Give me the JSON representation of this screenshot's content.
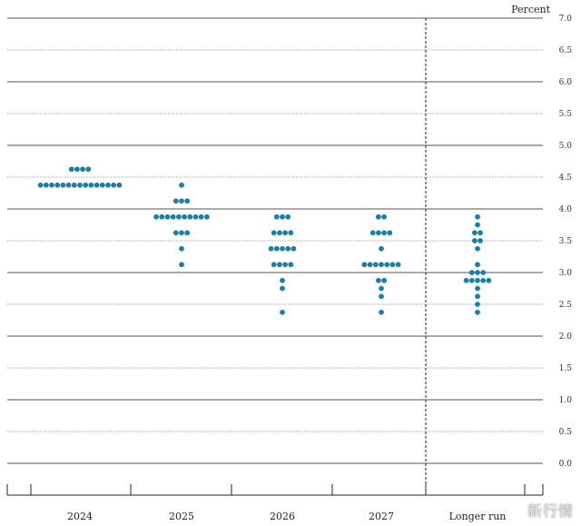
{
  "chart_data": {
    "type": "scatter",
    "ylabel": "Percent",
    "ylim": [
      0,
      7
    ],
    "ytick_step": 0.5,
    "categories": [
      "2024",
      "2025",
      "2026",
      "2027",
      "Longer run"
    ],
    "grid": "horizontal",
    "separator_before_category": 4,
    "dot_color": "#1a7fa8",
    "dots": [
      {
        "category": "2024",
        "values": [
          {
            "y": 4.625,
            "count": 4
          },
          {
            "y": 4.375,
            "count": 15
          }
        ]
      },
      {
        "category": "2025",
        "values": [
          {
            "y": 4.375,
            "count": 1
          },
          {
            "y": 4.125,
            "count": 3
          },
          {
            "y": 3.875,
            "count": 10
          },
          {
            "y": 3.625,
            "count": 3
          },
          {
            "y": 3.375,
            "count": 1
          },
          {
            "y": 3.125,
            "count": 1
          }
        ]
      },
      {
        "category": "2026",
        "values": [
          {
            "y": 3.875,
            "count": 3
          },
          {
            "y": 3.625,
            "count": 4
          },
          {
            "y": 3.375,
            "count": 5
          },
          {
            "y": 3.125,
            "count": 4
          },
          {
            "y": 2.875,
            "count": 1
          },
          {
            "y": 2.75,
            "count": 1
          },
          {
            "y": 2.375,
            "count": 1
          }
        ]
      },
      {
        "category": "2027",
        "values": [
          {
            "y": 3.875,
            "count": 2
          },
          {
            "y": 3.625,
            "count": 4
          },
          {
            "y": 3.375,
            "count": 1
          },
          {
            "y": 3.125,
            "count": 7
          },
          {
            "y": 2.875,
            "count": 2
          },
          {
            "y": 2.75,
            "count": 1
          },
          {
            "y": 2.625,
            "count": 1
          },
          {
            "y": 2.375,
            "count": 1
          }
        ]
      },
      {
        "category": "Longer run",
        "values": [
          {
            "y": 3.875,
            "count": 1
          },
          {
            "y": 3.75,
            "count": 1
          },
          {
            "y": 3.625,
            "count": 2
          },
          {
            "y": 3.5,
            "count": 2
          },
          {
            "y": 3.375,
            "count": 1
          },
          {
            "y": 3.125,
            "count": 1
          },
          {
            "y": 3.0,
            "count": 3
          },
          {
            "y": 2.875,
            "count": 5
          },
          {
            "y": 2.75,
            "count": 1
          },
          {
            "y": 2.625,
            "count": 1
          },
          {
            "y": 2.5,
            "count": 1
          },
          {
            "y": 2.375,
            "count": 1
          }
        ]
      }
    ]
  },
  "watermark": "新行情"
}
